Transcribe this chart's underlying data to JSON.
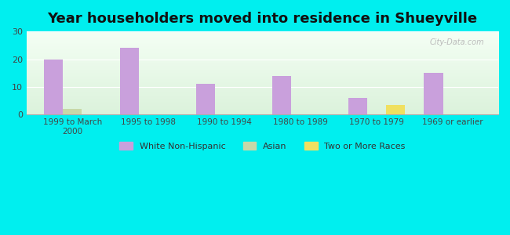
{
  "title": "Year householders moved into residence in Shueyville",
  "background_color": "#00EFEF",
  "categories": [
    "1999 to March\n2000",
    "1995 to 1998",
    "1990 to 1994",
    "1980 to 1989",
    "1970 to 1979",
    "1969 or earlier"
  ],
  "white_non_hispanic": [
    20,
    24,
    11,
    14,
    6,
    15
  ],
  "asian": [
    2,
    0,
    0,
    0,
    0,
    0
  ],
  "two_or_more": [
    0,
    0,
    0,
    0,
    3.5,
    0
  ],
  "bar_color_purple": "#c9a0dc",
  "bar_color_asian": "#c8d8a8",
  "bar_color_two": "#f0e060",
  "ylim": [
    0,
    30
  ],
  "yticks": [
    0,
    10,
    20,
    30
  ],
  "bar_width": 0.25,
  "legend_labels": [
    "White Non-Hispanic",
    "Asian",
    "Two or More Races"
  ],
  "watermark": "City-Data.com"
}
